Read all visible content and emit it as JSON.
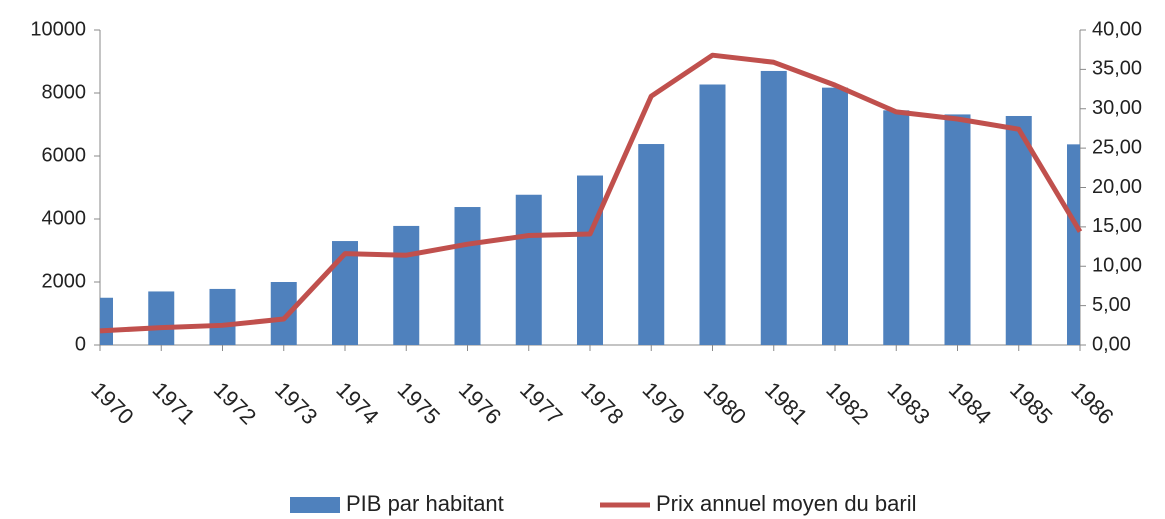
{
  "chart_data": {
    "type": "bar-line",
    "categories": [
      "1970",
      "1971",
      "1972",
      "1973",
      "1974",
      "1975",
      "1976",
      "1977",
      "1978",
      "1979",
      "1980",
      "1981",
      "1982",
      "1983",
      "1984",
      "1985",
      "1986"
    ],
    "series": [
      {
        "name": "PIB par habitant",
        "type": "bar",
        "color": "#4f81bd",
        "axis": "y",
        "values": [
          1500,
          1700,
          1780,
          2000,
          3300,
          3780,
          4380,
          4770,
          5380,
          6380,
          8270,
          8700,
          8170,
          7450,
          7320,
          7270,
          6370
        ]
      },
      {
        "name": "Prix annuel moyen du baril",
        "type": "line",
        "color": "#c0504d",
        "axis": "y2",
        "values": [
          1.8,
          2.2,
          2.5,
          3.3,
          11.6,
          11.4,
          12.8,
          13.9,
          14.1,
          31.6,
          36.8,
          35.9,
          33.0,
          29.6,
          28.7,
          27.4,
          14.4
        ]
      }
    ],
    "ylim": [
      0,
      10000
    ],
    "yticks": [
      0,
      2000,
      4000,
      6000,
      8000,
      10000
    ],
    "y2lim": [
      0,
      40
    ],
    "y2ticks": [
      {
        "value": 0,
        "label": "0,00"
      },
      {
        "value": 5,
        "label": "5,00"
      },
      {
        "value": 10,
        "label": "10,00"
      },
      {
        "value": 15,
        "label": "15,00"
      },
      {
        "value": 20,
        "label": "20,00"
      },
      {
        "value": 25,
        "label": "25,00"
      },
      {
        "value": 30,
        "label": "30,00"
      },
      {
        "value": 35,
        "label": "35,00"
      },
      {
        "value": 40,
        "label": "40,00"
      }
    ],
    "grid": false,
    "legend": "bottom"
  }
}
